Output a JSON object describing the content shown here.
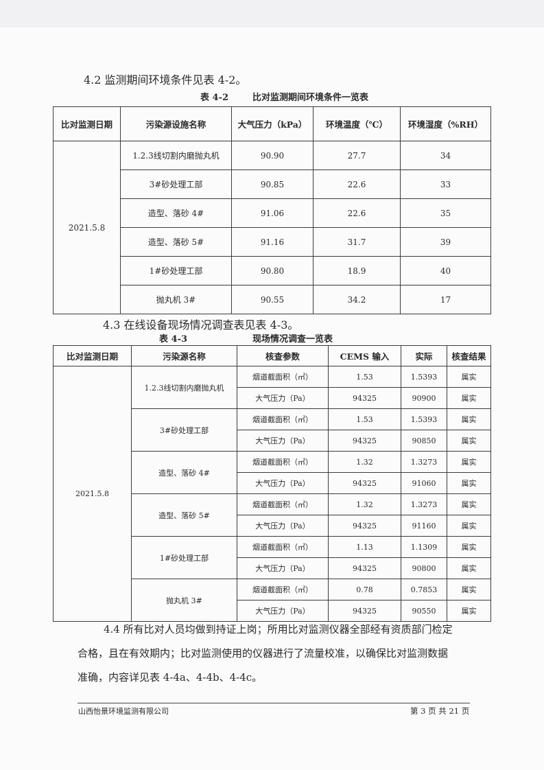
{
  "section_4_2": "4.2 监测期间环境条件见表 4-2。",
  "table_4_2": {
    "caption_no": "表 4-2",
    "caption_title": "比对监测期间环境条件一览表",
    "headers": [
      "比对监测日期",
      "污染源设施名称",
      "大气压力（kPa）",
      "环境温度（℃）",
      "环境湿度（%RH）"
    ],
    "date": "2021.5.8",
    "rows": [
      {
        "name": "1.2.3线切割内磨抛丸机",
        "pressure": "90.90",
        "temp": "27.7",
        "humidity": "34"
      },
      {
        "name": "3#砂处理工部",
        "pressure": "90.85",
        "temp": "22.6",
        "humidity": "33"
      },
      {
        "name": "造型、落砂 4#",
        "pressure": "91.06",
        "temp": "22.6",
        "humidity": "35"
      },
      {
        "name": "造型、落砂 5#",
        "pressure": "91.16",
        "temp": "31.7",
        "humidity": "39"
      },
      {
        "name": "1#砂处理工部",
        "pressure": "90.80",
        "temp": "18.9",
        "humidity": "40"
      },
      {
        "name": "抛丸机 3#",
        "pressure": "90.55",
        "temp": "34.2",
        "humidity": "17"
      }
    ]
  },
  "section_4_3": "4.3 在线设备现场情况调查表见表 4-3。",
  "table_4_3": {
    "caption_no": "表 4-3",
    "caption_title": "现场情况调查一览表",
    "headers": [
      "比对监测日期",
      "污染源名称",
      "核查参数",
      "CEMS 输入",
      "实际",
      "核查结果"
    ],
    "date": "2021.5.8",
    "param_area": "烟道截面积（㎡）",
    "param_pressure": "大气压力（Pa）",
    "result": "属实",
    "groups": [
      {
        "name": "1.2.3线切割内磨抛丸机",
        "area_cems": "1.53",
        "area_actual": "1.5393",
        "p_cems": "94325",
        "p_actual": "90900"
      },
      {
        "name": "3#砂处理工部",
        "area_cems": "1.53",
        "area_actual": "1.5393",
        "p_cems": "94325",
        "p_actual": "90850"
      },
      {
        "name": "造型、落砂 4#",
        "area_cems": "1.32",
        "area_actual": "1.3273",
        "p_cems": "94325",
        "p_actual": "91060"
      },
      {
        "name": "造型、落砂 5#",
        "area_cems": "1.32",
        "area_actual": "1.3273",
        "p_cems": "94325",
        "p_actual": "91160"
      },
      {
        "name": "1#砂处理工部",
        "area_cems": "1.13",
        "area_actual": "1.1309",
        "p_cems": "94325",
        "p_actual": "90800"
      },
      {
        "name": "抛丸机 3#",
        "area_cems": "0.78",
        "area_actual": "0.7853",
        "p_cems": "94325",
        "p_actual": "90550"
      }
    ]
  },
  "section_4_4": {
    "line1": "4.4 所有比对人员均做到持证上岗；所用比对监测仪器全部经有资质部门检定",
    "line2": "合格，且在有效期内；比对监测使用的仪器进行了流量校准，以确保比对监测数据",
    "line3": "准确，内容详见表 4-4a、4-4b、4-4c。"
  },
  "footer": {
    "company": "山西怡景环境监测有限公司",
    "page": "第 3 页 共 21 页"
  }
}
